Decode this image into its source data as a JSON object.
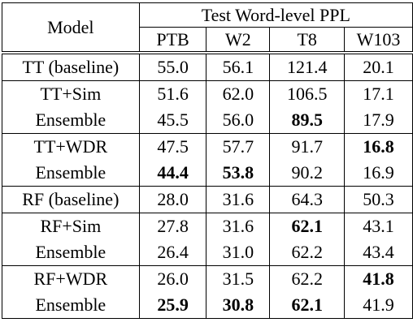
{
  "table": {
    "header_model": "Model",
    "header_group": "Test Word-level PPL",
    "columns": [
      "PTB",
      "W2",
      "T8",
      "W103"
    ],
    "groups": [
      {
        "rows": [
          {
            "model": "TT (baseline)",
            "values": [
              "55.0",
              "56.1",
              "121.4",
              "20.1"
            ],
            "bold": [
              false,
              false,
              false,
              false
            ]
          }
        ]
      },
      {
        "rows": [
          {
            "model": "TT+Sim",
            "values": [
              "51.6",
              "62.0",
              "106.5",
              "17.1"
            ],
            "bold": [
              false,
              false,
              false,
              false
            ]
          },
          {
            "model": "Ensemble",
            "values": [
              "45.5",
              "56.0",
              "89.5",
              "17.9"
            ],
            "bold": [
              false,
              false,
              true,
              false
            ]
          }
        ]
      },
      {
        "rows": [
          {
            "model": "TT+WDR",
            "values": [
              "47.5",
              "57.7",
              "91.7",
              "16.8"
            ],
            "bold": [
              false,
              false,
              false,
              true
            ]
          },
          {
            "model": "Ensemble",
            "values": [
              "44.4",
              "53.8",
              "90.2",
              "16.9"
            ],
            "bold": [
              true,
              true,
              false,
              false
            ]
          }
        ]
      },
      {
        "rows": [
          {
            "model": "RF (baseline)",
            "values": [
              "28.0",
              "31.6",
              "64.3",
              "50.3"
            ],
            "bold": [
              false,
              false,
              false,
              false
            ]
          }
        ]
      },
      {
        "rows": [
          {
            "model": "RF+Sim",
            "values": [
              "27.8",
              "31.6",
              "62.1",
              "43.1"
            ],
            "bold": [
              false,
              false,
              true,
              false
            ]
          },
          {
            "model": "Ensemble",
            "values": [
              "26.4",
              "31.0",
              "62.2",
              "43.4"
            ],
            "bold": [
              false,
              false,
              false,
              false
            ]
          }
        ]
      },
      {
        "rows": [
          {
            "model": "RF+WDR",
            "values": [
              "26.0",
              "31.5",
              "62.2",
              "41.8"
            ],
            "bold": [
              false,
              false,
              false,
              true
            ]
          },
          {
            "model": "Ensemble",
            "values": [
              "25.9",
              "30.8",
              "62.1",
              "41.9"
            ],
            "bold": [
              true,
              true,
              true,
              false
            ]
          }
        ]
      }
    ]
  }
}
